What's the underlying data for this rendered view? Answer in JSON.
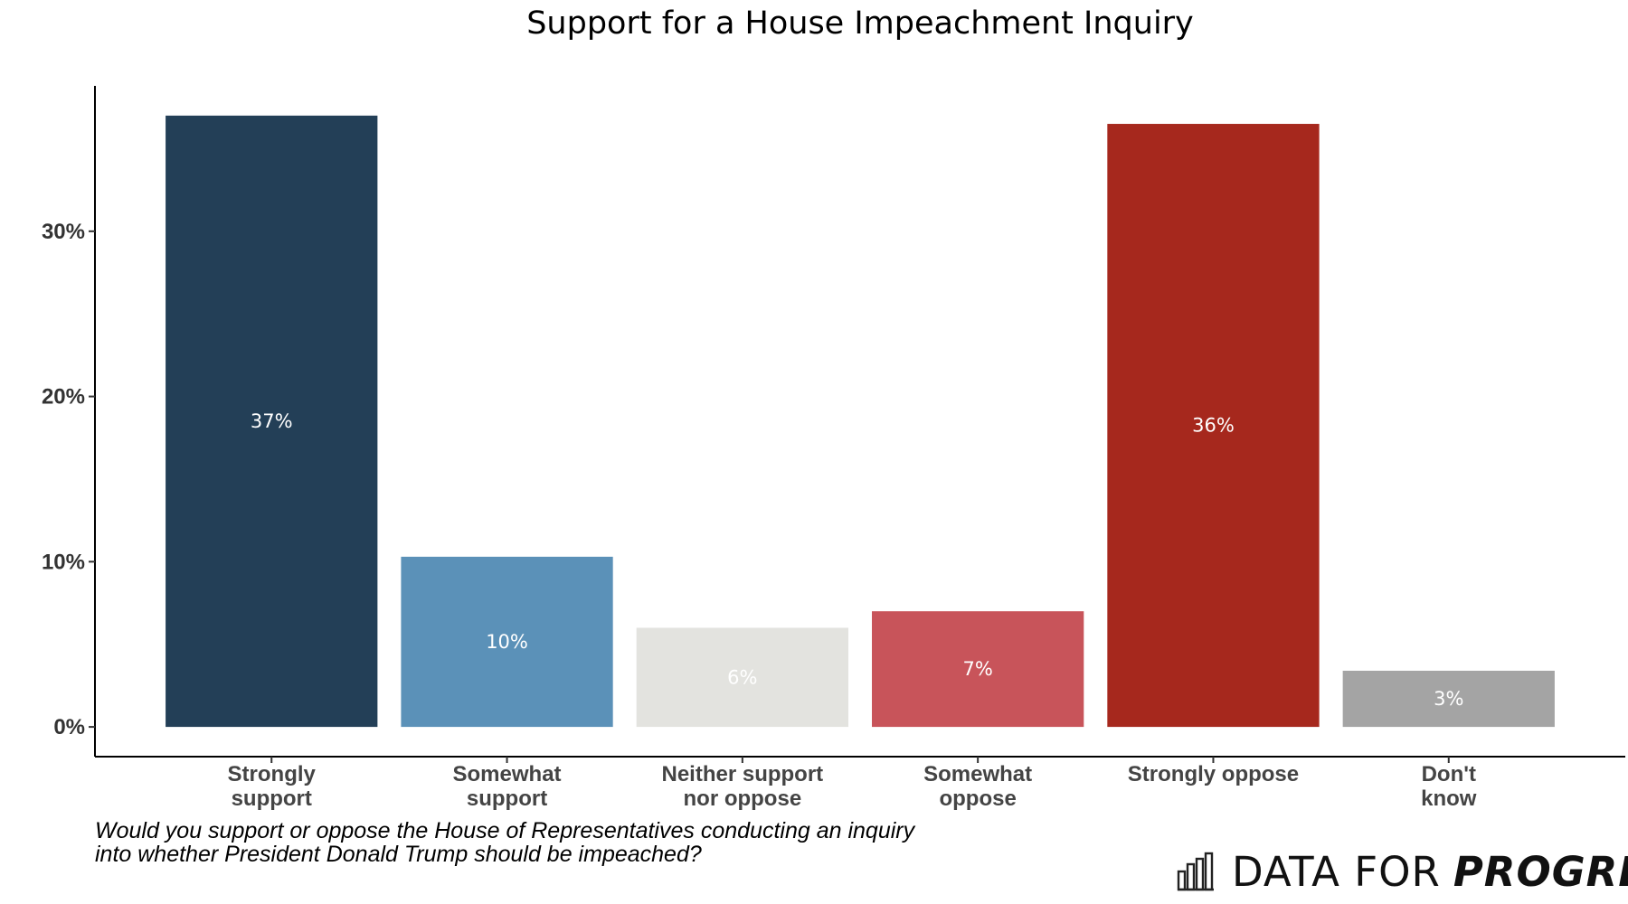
{
  "chart_data": {
    "type": "bar",
    "title": "Support for a House Impeachment Inquiry",
    "categories": [
      "Strongly support",
      "Somewhat support",
      "Neither support nor oppose",
      "Somewhat oppose",
      "Strongly oppose",
      "Don't know"
    ],
    "category_label_lines": [
      [
        "Strongly",
        "support"
      ],
      [
        "Somewhat",
        "support"
      ],
      [
        "Neither support",
        "nor oppose"
      ],
      [
        "Somewhat",
        "oppose"
      ],
      [
        "Strongly oppose"
      ],
      [
        "Don't",
        "know"
      ]
    ],
    "values": [
      37,
      10.3,
      6,
      7,
      36.5,
      3.4
    ],
    "data_labels": [
      "37%",
      "10%",
      "6%",
      "7%",
      "36%",
      "3%"
    ],
    "colors": [
      "#233f57",
      "#5b91b8",
      "#e3e3df",
      "#c8545a",
      "#a6281d",
      "#a4a4a4"
    ],
    "label_colors": [
      "#ffffff",
      "#ffffff",
      "#ffffff",
      "#ffffff",
      "#ffffff",
      "#ffffff"
    ],
    "yticks": [
      0,
      10,
      20,
      30
    ],
    "ytick_labels": [
      "0%",
      "10%",
      "20%",
      "30%"
    ],
    "ylim": [
      -1.8,
      38.8
    ],
    "grid": false,
    "xlabel": "",
    "ylabel": ""
  },
  "caption": {
    "line1": "Would you support or oppose the House of Representatives conducting an inquiry",
    "line2": "into whether President Donald Trump should be impeached?"
  },
  "logo": {
    "icon": "bar-chart-icon",
    "text_light": "DATA FOR",
    "text_bold": "PROGRESS"
  }
}
